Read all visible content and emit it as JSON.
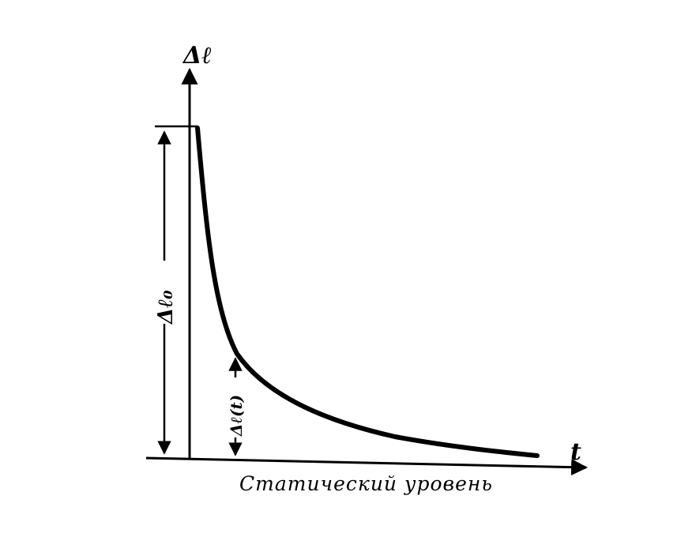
{
  "diagram": {
    "y_axis_label": "Δℓ",
    "x_axis_label": "t",
    "initial_dimension_label": "Δℓ₀",
    "current_dimension_label": "Δℓ(t)",
    "baseline_caption": "Статический уровень",
    "line_color": "#000000",
    "background_color": "#ffffff"
  }
}
